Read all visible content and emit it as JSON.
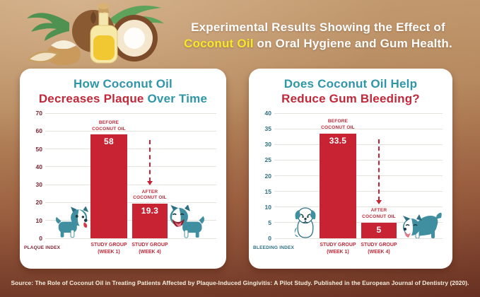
{
  "header": {
    "line1": "Experimental Results Showing the Effect of",
    "line2_highlight": "Coconut Oil",
    "line2_rest": " on Oral Hygiene and Gum Health.",
    "text_color": "#FFFFFF",
    "highlight_color": "#F5E729"
  },
  "source": {
    "text": "Source: The Role of Coconut Oil in Treating Patients Affected by Plaque-Induced Gingivitis: A Pilot Study. Published in the European Journal of Dentistry (2020)."
  },
  "colors": {
    "background_top": "#C59D73",
    "background_bottom": "#6F3526",
    "card_background": "#FFFFFF",
    "bar_red": "#C82333",
    "title_teal": "#2E96A8",
    "title_red": "#C0293A",
    "plaque_axis_color": "#7E2433",
    "bleeding_axis_color": "#2C6F80",
    "dog_teal": "#3F8FA1",
    "gridline": "#E4E2DD"
  },
  "decor": {
    "illustration": "coconut-oil-still-life",
    "dogs": [
      "boston-terrier-looking-icon",
      "boston-terrier-happy-icon",
      "sad-puppy-icon",
      "boston-terrier-playing-icon"
    ]
  },
  "chart_data": [
    {
      "type": "bar",
      "title_lines": [
        [
          {
            "text": "How Coconut Oil",
            "color": "#2E96A8"
          }
        ],
        [
          {
            "text": "Decreases Plaque",
            "color": "#C0293A"
          },
          {
            "text": " Over Time",
            "color": "#2E96A8"
          }
        ]
      ],
      "ylim": [
        0,
        70
      ],
      "yticks": [
        0,
        10,
        20,
        30,
        40,
        50,
        60,
        70
      ],
      "grid": true,
      "legend": false,
      "axis_title": "PLAQUE INDEX",
      "categories": [
        [
          "STUDY GROUP",
          "(WEEK 1)"
        ],
        [
          "STUDY GROUP",
          "(WEEK 4)"
        ]
      ],
      "values": [
        58,
        19.3
      ],
      "value_labels": [
        "58",
        "19.3"
      ],
      "bar_annotations": [
        [
          "BEFORE",
          "COCONUT OIL"
        ],
        [
          "AFTER",
          "COCONUT OIL"
        ]
      ],
      "bar_color": "#C82333",
      "tick_color": "#7E2433",
      "annotation_color": "#C0293A"
    },
    {
      "type": "bar",
      "title_lines": [
        [
          {
            "text": "Does Coconut Oil Help",
            "color": "#2E96A8"
          }
        ],
        [
          {
            "text": "Reduce Gum Bleeding?",
            "color": "#C0293A"
          }
        ]
      ],
      "ylim": [
        0,
        40
      ],
      "yticks": [
        0,
        5,
        10,
        15,
        20,
        25,
        30,
        35,
        40
      ],
      "grid": true,
      "legend": false,
      "axis_title": "BLEEDING INDEX",
      "categories": [
        [
          "STUDY GROUP",
          "(WEEK 1)"
        ],
        [
          "STUDY GROUP",
          "(WEEK 4)"
        ]
      ],
      "values": [
        33.5,
        5
      ],
      "value_labels": [
        "33.5",
        "5"
      ],
      "bar_annotations": [
        [
          "BEFORE",
          "COCONUT OIL"
        ],
        [
          "AFTER",
          "COCONUT OIL"
        ]
      ],
      "bar_color": "#C82333",
      "tick_color": "#2C6F80",
      "annotation_color": "#C0293A"
    }
  ]
}
